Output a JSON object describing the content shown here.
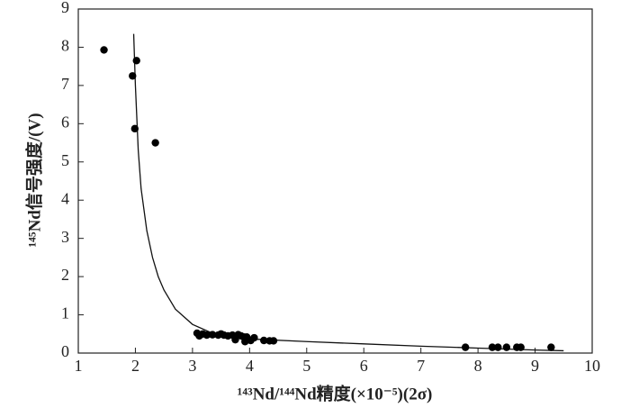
{
  "chart_data": {
    "type": "scatter",
    "x_label": "¹⁴³Nd/¹⁴⁴Nd精度(×10⁻⁵)(2σ)",
    "y_label": "¹⁴⁵Nd信号强度/(V)",
    "color": "#000000",
    "x": [
      1.45,
      1.95,
      2.02,
      1.99,
      2.35,
      3.08,
      3.12,
      3.18,
      3.25,
      3.35,
      3.45,
      3.5,
      3.55,
      3.62,
      3.7,
      3.75,
      3.8,
      3.85,
      3.9,
      3.92,
      3.95,
      4.02,
      4.08,
      4.25,
      4.35,
      4.42,
      7.78,
      8.25,
      8.35,
      8.5,
      8.68,
      8.75,
      9.28
    ],
    "values": [
      7.93,
      7.25,
      7.65,
      5.87,
      5.5,
      0.52,
      0.45,
      0.5,
      0.47,
      0.48,
      0.47,
      0.5,
      0.47,
      0.45,
      0.47,
      0.35,
      0.48,
      0.45,
      0.42,
      0.3,
      0.42,
      0.33,
      0.4,
      0.33,
      0.32,
      0.32,
      0.15,
      0.15,
      0.15,
      0.15,
      0.15,
      0.15,
      0.15
    ],
    "fit": {
      "x": [
        1.97,
        2.0,
        2.05,
        2.1,
        2.2,
        2.3,
        2.4,
        2.5,
        2.7,
        3.0,
        3.3,
        3.6,
        4.0,
        5,
        6,
        7,
        8,
        9,
        9.5
      ],
      "values": [
        8.35,
        7.0,
        5.3,
        4.3,
        3.2,
        2.5,
        2.0,
        1.65,
        1.15,
        0.75,
        0.55,
        0.45,
        0.37,
        0.3,
        0.24,
        0.18,
        0.13,
        0.08,
        0.06
      ]
    },
    "xlim": [
      1,
      10
    ],
    "ylim": [
      0,
      9
    ],
    "xticks": [
      1,
      2,
      3,
      4,
      5,
      6,
      7,
      8,
      9,
      10
    ],
    "yticks": [
      0,
      1,
      2,
      3,
      4,
      5,
      6,
      7,
      8,
      9
    ]
  }
}
